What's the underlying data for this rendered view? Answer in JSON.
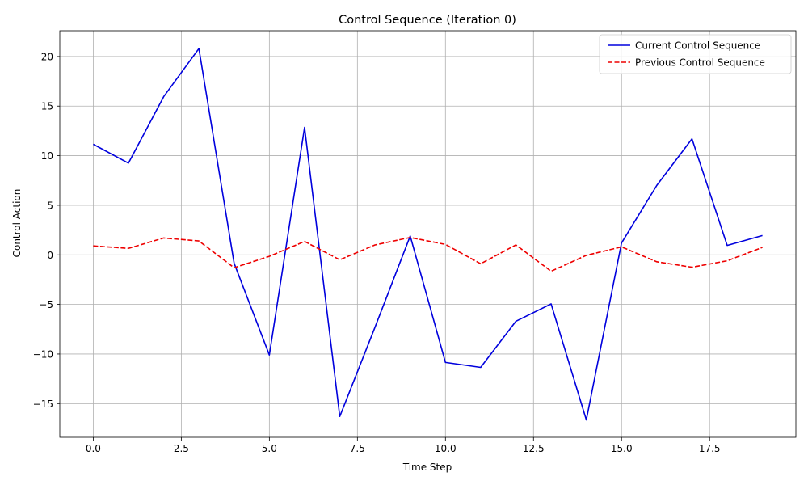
{
  "chart_data": {
    "type": "line",
    "title": "Control Sequence (Iteration 0)",
    "xlabel": "Time Step",
    "ylabel": "Control Action",
    "xlim": [
      -0.95,
      19.95
    ],
    "ylim": [
      -18.4,
      22.6
    ],
    "xticks": [
      0.0,
      2.5,
      5.0,
      7.5,
      10.0,
      12.5,
      15.0,
      17.5
    ],
    "xtick_labels": [
      "0.0",
      "2.5",
      "5.0",
      "7.5",
      "10.0",
      "12.5",
      "15.0",
      "17.5"
    ],
    "yticks": [
      -15,
      -10,
      -5,
      0,
      5,
      10,
      15,
      20
    ],
    "ytick_labels": [
      "−15",
      "−10",
      "−5",
      "0",
      "5",
      "10",
      "15",
      "20"
    ],
    "grid": true,
    "legend_position": "top-right",
    "x": [
      0,
      1,
      2,
      3,
      4,
      5,
      6,
      7,
      8,
      9,
      10,
      11,
      12,
      13,
      14,
      15,
      16,
      17,
      18,
      19
    ],
    "series": [
      {
        "name": "Current Control Sequence",
        "color": "#0000dd",
        "style": "solid",
        "values": [
          11.15,
          9.25,
          15.95,
          20.8,
          -0.85,
          -10.1,
          12.85,
          -16.3,
          -7.3,
          1.9,
          -10.85,
          -11.35,
          -6.7,
          -4.95,
          -16.65,
          1.2,
          7.0,
          11.7,
          0.95,
          1.95
        ]
      },
      {
        "name": "Previous Control Sequence",
        "color": "#ee0000",
        "style": "dashed",
        "values": [
          0.9,
          0.65,
          1.7,
          1.4,
          -1.3,
          -0.15,
          1.35,
          -0.5,
          1.0,
          1.75,
          1.05,
          -0.9,
          1.0,
          -1.65,
          -0.05,
          0.8,
          -0.7,
          -1.25,
          -0.6,
          0.75
        ]
      }
    ]
  }
}
